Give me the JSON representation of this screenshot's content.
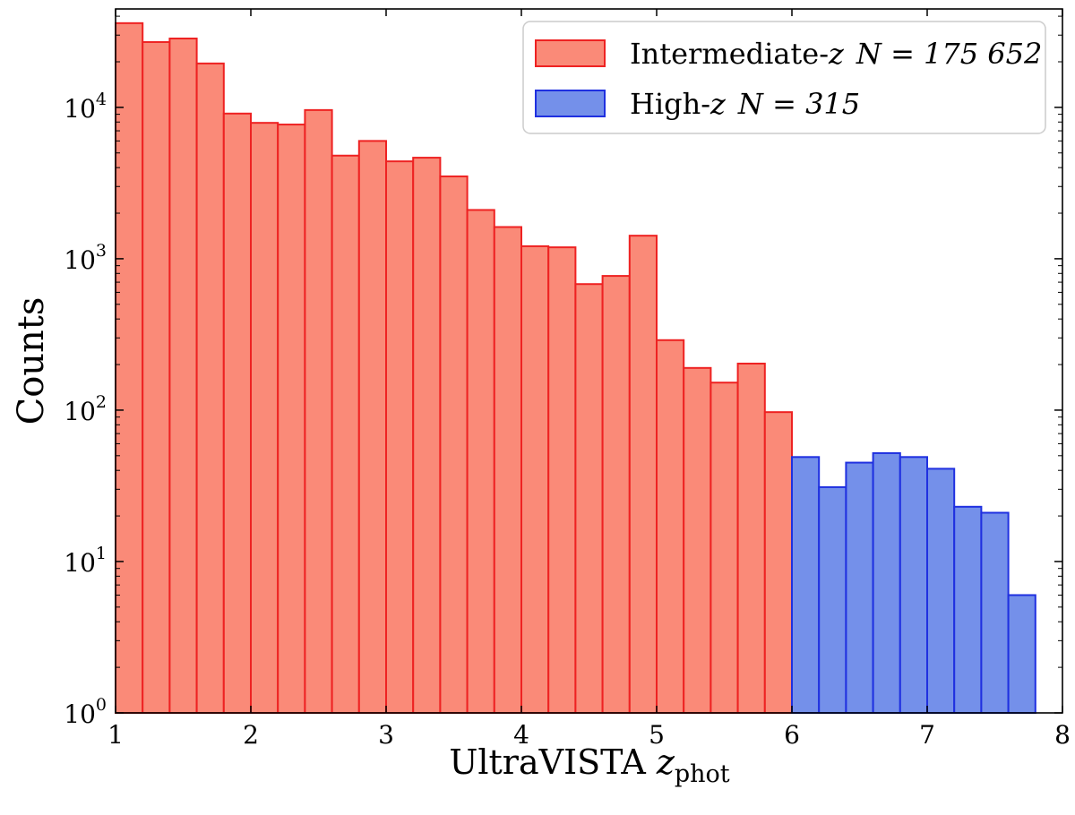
{
  "chart_data": {
    "type": "bar",
    "title": "",
    "xlabel": "UltraVISTA",
    "xlabel_var": "z",
    "xlabel_sub": "phot",
    "ylabel": "Counts",
    "xlim": [
      1,
      8
    ],
    "ylim_log10": [
      0,
      4.65
    ],
    "bin_width": 0.2,
    "x_ticks": [
      "1",
      "2",
      "3",
      "4",
      "5",
      "6",
      "7",
      "8"
    ],
    "y_ticks": [
      {
        "base": "10",
        "exp": "0"
      },
      {
        "base": "10",
        "exp": "1"
      },
      {
        "base": "10",
        "exp": "2"
      },
      {
        "base": "10",
        "exp": "3"
      },
      {
        "base": "10",
        "exp": "4"
      }
    ],
    "series": [
      {
        "name": "Intermediate-z",
        "label_prefix": "Intermediate-",
        "label_var": "z",
        "label_n": "N = 175 652",
        "fill": "#fa8a78",
        "stroke": "#ee2222",
        "bin_start": 1.0,
        "values": [
          36000,
          27000,
          28500,
          19500,
          9100,
          7900,
          7700,
          9600,
          4800,
          6000,
          4400,
          4650,
          3500,
          2100,
          1620,
          1210,
          1190,
          680,
          770,
          1420,
          290,
          190,
          152,
          203,
          97
        ]
      },
      {
        "name": "High-z",
        "label_prefix": "High-",
        "label_var": "z",
        "label_n": "N = 315",
        "fill": "#7490ea",
        "stroke": "#1f30e0",
        "bin_start": 6.0,
        "values": [
          49,
          31,
          45,
          52,
          49,
          41,
          23,
          21,
          6,
          1
        ]
      }
    ]
  }
}
